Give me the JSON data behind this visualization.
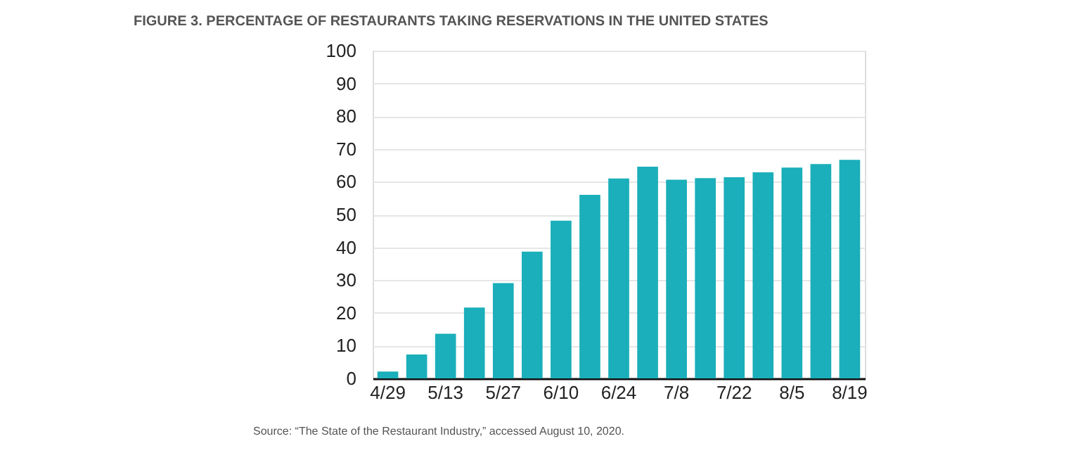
{
  "chart_data": {
    "type": "bar",
    "title": "FIGURE 3. PERCENTAGE OF RESTAURANTS TAKING RESERVATIONS IN THE UNITED STATES",
    "categories": [
      "4/29",
      null,
      "5/13",
      null,
      "5/27",
      null,
      "6/10",
      null,
      "6/24",
      null,
      "7/8",
      null,
      "7/22",
      null,
      "8/5",
      null,
      "8/19"
    ],
    "values": [
      2.1,
      7.3,
      13.6,
      21.6,
      29.1,
      38.7,
      48.1,
      56,
      61,
      64.6,
      60.6,
      61.1,
      61.4,
      62.9,
      64.3,
      65.4,
      66.7
    ],
    "color": "#1aafba",
    "ylim": [
      0,
      100
    ],
    "yticks": [
      0,
      10,
      20,
      30,
      40,
      50,
      60,
      70,
      80,
      90,
      100
    ],
    "grid": "y",
    "annotations": [
      "Source: “The State of the Restaurant Industry,” accessed August 10, 2020."
    ]
  }
}
